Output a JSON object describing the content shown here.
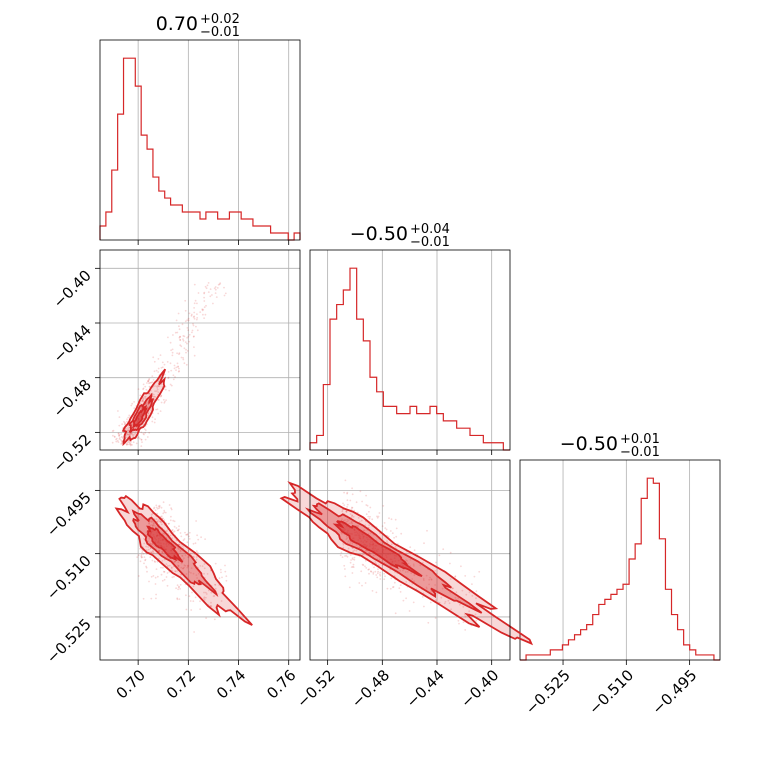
{
  "chart_data": {
    "type": "corner",
    "color": "#d62728",
    "grid": true,
    "parameters": [
      {
        "title": {
          "main": "0.70",
          "sup": "+0.02",
          "sub": "−0.01"
        },
        "range": [
          0.6848,
          0.7645
        ],
        "ticks": [
          0.7,
          0.72,
          0.74,
          0.76
        ],
        "tick_labels": [
          "0.70",
          "0.72",
          "0.74",
          "0.76"
        ],
        "hist": [
          2,
          4,
          10,
          18,
          26,
          26,
          22,
          15,
          13,
          9,
          7,
          6,
          5,
          5,
          4,
          4,
          4,
          3,
          4,
          4,
          3,
          3,
          4,
          4,
          3,
          3,
          2,
          2,
          2,
          1,
          1,
          1,
          0,
          1
        ]
      },
      {
        "title": {
          "main": "−0.50",
          "sup": "+0.04",
          "sub": "−0.01"
        },
        "range": [
          -0.5329,
          -0.3866
        ],
        "ticks": [
          -0.52,
          -0.48,
          -0.44,
          -0.4
        ],
        "tick_labels": [
          "−0.52",
          "−0.48",
          "−0.44",
          "−0.40"
        ],
        "hist": [
          1,
          2,
          9,
          18,
          20,
          22,
          25,
          18,
          15,
          10,
          8,
          6,
          6,
          5,
          5,
          6,
          5,
          5,
          6,
          5,
          4,
          4,
          3,
          3,
          2,
          2,
          1,
          1,
          1,
          0
        ]
      },
      {
        "title": {
          "main": "−0.50",
          "sup": "+0.01",
          "sub": "−0.01"
        },
        "range": [
          -0.5352,
          -0.4878
        ],
        "ticks": [
          -0.525,
          -0.51,
          -0.495
        ],
        "tick_labels": [
          "−0.525",
          "−0.510",
          "−0.495"
        ],
        "hist": [
          0,
          1,
          1,
          1,
          1,
          2,
          2,
          3,
          4,
          5,
          6,
          7,
          9,
          11,
          12,
          13,
          14,
          15,
          20,
          23,
          32,
          36,
          35,
          24,
          14,
          9,
          6,
          3,
          2,
          1,
          1,
          1,
          0
        ]
      }
    ],
    "pairs": [
      {
        "x": 0,
        "y": 1,
        "center": [
          0.7,
          -0.511
        ],
        "axis": [
          0.0365,
          0.1198
        ],
        "widths": [
          0.0034,
          0.0022,
          0.0011
        ],
        "lengths": [
          0.0175,
          0.009,
          0.005
        ]
      },
      {
        "x": 0,
        "y": 2,
        "center": [
          0.708,
          -0.5065
        ],
        "axis": [
          0.03,
          -0.017
        ],
        "widths": [
          0.0045,
          0.0028,
          0.0016
        ],
        "lengths": [
          0.019,
          0.012,
          0.005
        ]
      },
      {
        "x": 1,
        "y": 2,
        "center": [
          -0.495,
          -0.5065
        ],
        "axis": [
          0.1,
          -0.02
        ],
        "widths": [
          0.0046,
          0.003,
          0.0017
        ],
        "lengths": [
          0.06,
          0.04,
          0.02
        ]
      }
    ]
  }
}
